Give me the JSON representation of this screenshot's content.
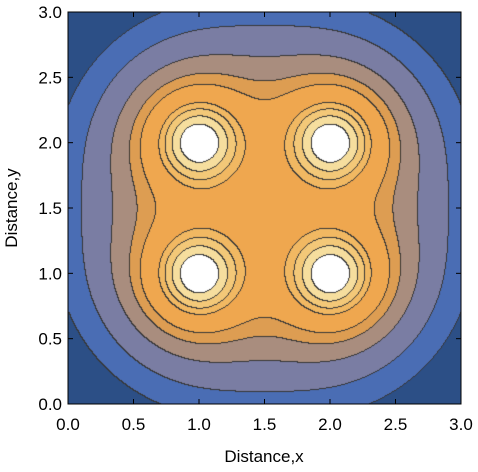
{
  "chart_data": {
    "type": "contour",
    "title": "",
    "xlabel": "Distance,x",
    "ylabel": "Distance,y",
    "xlim": [
      0.0,
      3.0
    ],
    "ylim": [
      0.0,
      3.0
    ],
    "x_ticks": [
      "0.0",
      "0.5",
      "1.0",
      "1.5",
      "2.0",
      "2.5",
      "3.0"
    ],
    "y_ticks": [
      "0.0",
      "0.5",
      "1.0",
      "1.5",
      "2.0",
      "2.5",
      "3.0"
    ],
    "sources": [
      {
        "x": 1.0,
        "y": 1.0
      },
      {
        "x": 2.0,
        "y": 1.0
      },
      {
        "x": 1.0,
        "y": 2.0
      },
      {
        "x": 2.0,
        "y": 2.0
      }
    ],
    "contour_levels": [
      {
        "level": 1,
        "color": "#2c4f86"
      },
      {
        "level": 2,
        "color": "#4a6db4"
      },
      {
        "level": 3,
        "color": "#7a7da3"
      },
      {
        "level": 4,
        "color": "#a98d7e"
      },
      {
        "level": 5,
        "color": "#dd9d52"
      },
      {
        "level": 6,
        "color": "#efa74f"
      },
      {
        "level": 7,
        "color": "#f1b862"
      },
      {
        "level": 8,
        "color": "#f3c878"
      },
      {
        "level": 9,
        "color": "#f6de9e"
      },
      {
        "level": 10,
        "color": "#ffffff"
      }
    ],
    "grid": false,
    "legend": "none"
  }
}
